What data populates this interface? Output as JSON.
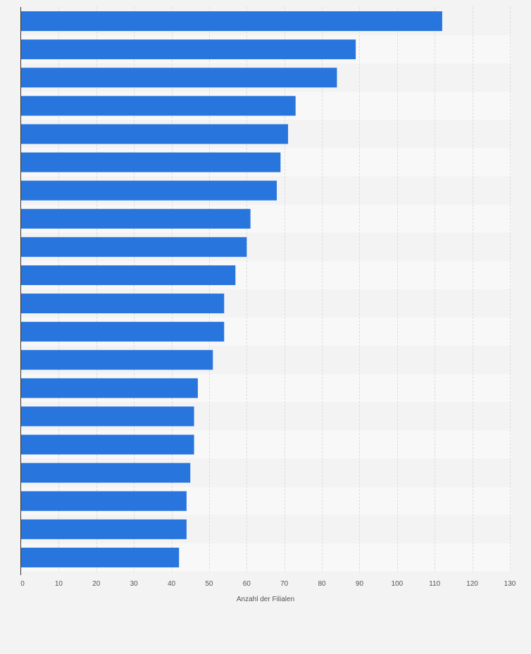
{
  "chart_data": {
    "type": "bar",
    "orientation": "horizontal",
    "xlabel": "Anzahl der Filialen",
    "xlim": [
      0,
      130
    ],
    "x_ticks": [
      0,
      10,
      20,
      30,
      40,
      50,
      60,
      70,
      80,
      90,
      100,
      110,
      120,
      130
    ],
    "grid": true,
    "values": [
      112,
      89,
      84,
      73,
      71,
      69,
      68,
      61,
      60,
      57,
      54,
      54,
      51,
      47,
      46,
      46,
      45,
      44,
      44,
      42
    ],
    "bar_color": "#2875dd"
  }
}
